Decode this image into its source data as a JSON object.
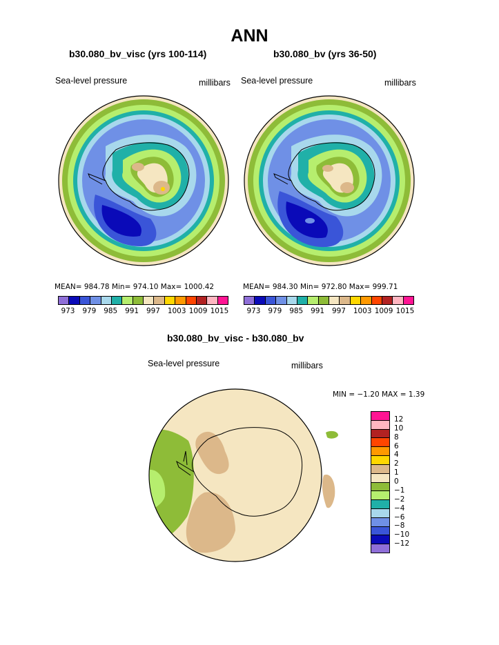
{
  "title": "ANN",
  "panel_left": {
    "subtitle": "b30.080_bv_visc (yrs 100-114)",
    "left_label": "Sea-level pressure",
    "right_label": "millibars",
    "stats": "MEAN= 984.78   Min= 974.10   Max= 1000.42"
  },
  "panel_right": {
    "subtitle": "b30.080_bv (yrs 36-50)",
    "left_label": "Sea-level pressure",
    "right_label": "millibars",
    "stats": "MEAN= 984.30   Min= 972.80   Max= 999.71"
  },
  "colorbar_top": {
    "colors": [
      "#8f6fd8",
      "#0a0ab8",
      "#3a55d8",
      "#6f90e6",
      "#a8d8ec",
      "#20b0a8",
      "#b6ee6e",
      "#8ebc38",
      "#f5e6c1",
      "#dcb88a",
      "#ffd700",
      "#ff9900",
      "#ff4500",
      "#b22222",
      "#ffb6c1",
      "#ff1493"
    ],
    "labels": [
      "973",
      "979",
      "985",
      "991",
      "997",
      "1003",
      "1009",
      "1015"
    ]
  },
  "panel_diff": {
    "subtitle": "b30.080_bv_visc - b30.080_bv",
    "left_label": "Sea-level pressure",
    "right_label": "millibars",
    "stats": "MIN =   −1.20  MAX =    1.39"
  },
  "colorbar_diff": {
    "colors": [
      "#ff1493",
      "#ffb6c1",
      "#b22222",
      "#ff4500",
      "#ff9900",
      "#ffd700",
      "#dcb88a",
      "#f5e6c1",
      "#8ebc38",
      "#b6ee6e",
      "#20b0a8",
      "#a8d8ec",
      "#6f90e6",
      "#3a55d8",
      "#0a0ab8",
      "#8f6fd8"
    ],
    "labels": [
      "12",
      "10",
      "8",
      "6",
      "4",
      "2",
      "1",
      "0",
      "−1",
      "−2",
      "−4",
      "−6",
      "−8",
      "−10",
      "−12"
    ]
  },
  "map_colors": {
    "land_beige": "#f5e6c1",
    "tan": "#dcb88a",
    "green": "#8ebc38",
    "light_green": "#b6ee6e",
    "teal": "#20b0a8",
    "light_blue": "#a8d8ec",
    "blue": "#6f90e6",
    "mid_blue": "#3a55d8",
    "dark_blue": "#0a0ab8",
    "purple": "#8f6fd8"
  }
}
